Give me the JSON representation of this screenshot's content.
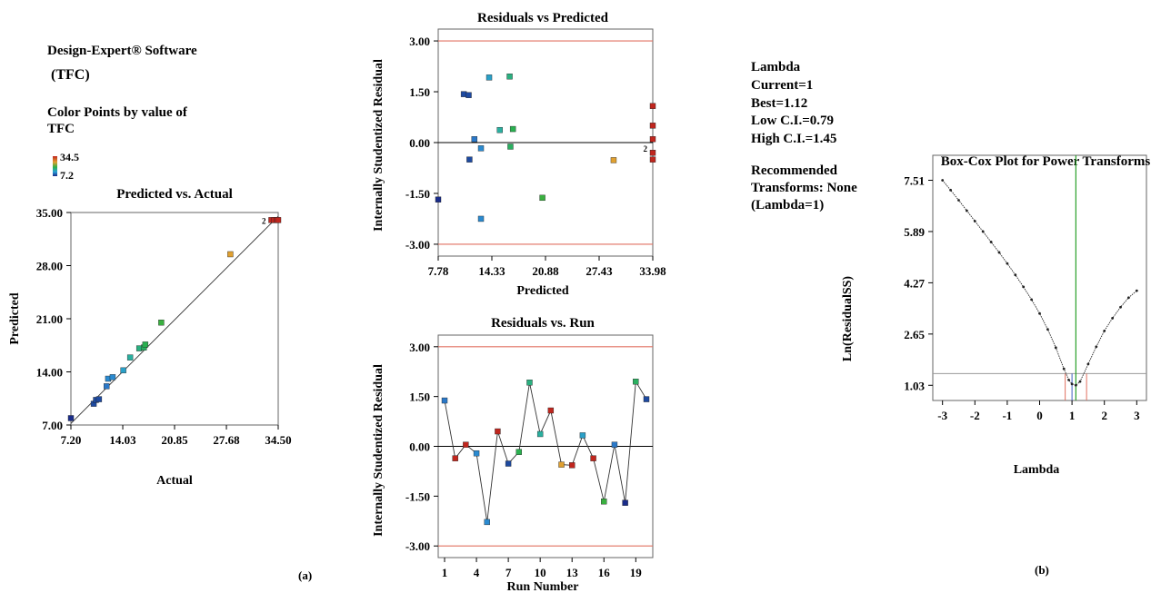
{
  "left_panel": {
    "software": "Design-Expert® Software",
    "response": "(TFC)",
    "color_label_1": "Color Points by value of",
    "color_label_2": "TFC",
    "legend_high": "34.5",
    "legend_low": "7.2",
    "panel_label": "(a)"
  },
  "lambda_info": {
    "title": "Lambda",
    "current": "Current=1",
    "best": "Best=1.12",
    "low_ci": "Low C.I.=0.79",
    "high_ci": "High C.I.=1.45",
    "rec1": "Recommended",
    "rec2": "Transforms: None",
    "rec3": "(Lambda=1)"
  },
  "right_panel": {
    "panel_label": "(b)"
  },
  "colors": {
    "red_line": "#e07060",
    "green_line": "#2aa02a",
    "grid": "#666666"
  },
  "chart_data": [
    {
      "id": "pva",
      "type": "scatter",
      "title": "Predicted vs. Actual",
      "xlabel": "Actual",
      "ylabel": "Predicted",
      "xlim": [
        7.2,
        34.5
      ],
      "ylim": [
        7.0,
        35.0
      ],
      "xticks": [
        "7.20",
        "14.03",
        "20.85",
        "27.68",
        "34.50"
      ],
      "yticks": [
        "7.00",
        "14.00",
        "21.00",
        "28.00",
        "35.00"
      ],
      "xtick_values": [
        7.2,
        14.03,
        20.85,
        27.68,
        34.5
      ],
      "ytick_values": [
        7.0,
        14.0,
        21.0,
        28.0,
        35.0
      ],
      "fit_line": [
        [
          7.2,
          7.2
        ],
        [
          34.5,
          34.5
        ]
      ],
      "points": [
        {
          "x": 7.2,
          "y": 7.9,
          "c": "#1a2c8a"
        },
        {
          "x": 10.2,
          "y": 9.8,
          "c": "#1e4aa0"
        },
        {
          "x": 10.5,
          "y": 10.3,
          "c": "#1e4aa0"
        },
        {
          "x": 10.9,
          "y": 10.4,
          "c": "#1e4aa0"
        },
        {
          "x": 11.9,
          "y": 12.1,
          "c": "#2a78c8"
        },
        {
          "x": 12.1,
          "y": 13.1,
          "c": "#2a8ad0"
        },
        {
          "x": 12.7,
          "y": 13.3,
          "c": "#2a8ad0"
        },
        {
          "x": 14.1,
          "y": 14.2,
          "c": "#2aa0c8"
        },
        {
          "x": 15.0,
          "y": 15.9,
          "c": "#2ab0a0"
        },
        {
          "x": 16.2,
          "y": 17.1,
          "c": "#2ab080"
        },
        {
          "x": 16.8,
          "y": 17.2,
          "c": "#2ab060"
        },
        {
          "x": 17.0,
          "y": 17.6,
          "c": "#2ab050"
        },
        {
          "x": 19.1,
          "y": 20.5,
          "c": "#3ab040"
        },
        {
          "x": 28.2,
          "y": 29.5,
          "c": "#e0a030"
        },
        {
          "x": 33.6,
          "y": 34.0,
          "c": "#c0261e"
        },
        {
          "x": 34.0,
          "y": 34.0,
          "c": "#c0261e"
        },
        {
          "x": 34.3,
          "y": 34.0,
          "c": "#c0261e"
        },
        {
          "x": 34.5,
          "y": 34.0,
          "c": "#c0261e"
        }
      ],
      "annotation": "2"
    },
    {
      "id": "rvp",
      "type": "scatter",
      "title": "Residuals vs Predicted",
      "xlabel": "Predicted",
      "ylabel": "Internally Studentized Residual",
      "xlim": [
        7.78,
        33.98
      ],
      "ylim": [
        -3.35,
        3.35
      ],
      "xticks": [
        "7.78",
        "14.33",
        "20.88",
        "27.43",
        "33.98"
      ],
      "yticks": [
        "3.00",
        "1.50",
        "0.00",
        "-1.50",
        "-3.00"
      ],
      "xtick_values": [
        7.78,
        14.33,
        20.88,
        27.43,
        33.98
      ],
      "ytick_values": [
        3.0,
        1.5,
        0.0,
        -1.5,
        -3.0
      ],
      "limits": [
        3.0,
        -3.0
      ],
      "points": [
        {
          "x": 7.78,
          "y": -1.68,
          "c": "#1a2c8a"
        },
        {
          "x": 10.9,
          "y": 1.43,
          "c": "#1e4aa0"
        },
        {
          "x": 11.5,
          "y": 1.4,
          "c": "#1e4aa0"
        },
        {
          "x": 11.6,
          "y": -0.5,
          "c": "#1e4aa0"
        },
        {
          "x": 12.2,
          "y": 0.1,
          "c": "#2a78c8"
        },
        {
          "x": 13.0,
          "y": -0.17,
          "c": "#2a8ad0"
        },
        {
          "x": 13.0,
          "y": -2.25,
          "c": "#2a8ad0"
        },
        {
          "x": 14.0,
          "y": 1.92,
          "c": "#2aa0c8"
        },
        {
          "x": 15.3,
          "y": 0.37,
          "c": "#2ab0a0"
        },
        {
          "x": 16.5,
          "y": 1.95,
          "c": "#2ab080"
        },
        {
          "x": 16.6,
          "y": -0.12,
          "c": "#2ab060"
        },
        {
          "x": 16.9,
          "y": 0.4,
          "c": "#2ab050"
        },
        {
          "x": 20.5,
          "y": -1.63,
          "c": "#3ab040"
        },
        {
          "x": 29.2,
          "y": -0.52,
          "c": "#e0a030"
        },
        {
          "x": 33.98,
          "y": 1.08,
          "c": "#c0261e"
        },
        {
          "x": 33.98,
          "y": 0.5,
          "c": "#c0261e"
        },
        {
          "x": 33.98,
          "y": 0.1,
          "c": "#c0261e"
        },
        {
          "x": 33.98,
          "y": -0.3,
          "c": "#c0261e"
        },
        {
          "x": 33.98,
          "y": -0.5,
          "c": "#c0261e"
        }
      ],
      "annotation": "2"
    },
    {
      "id": "rvr",
      "type": "line",
      "title": "Residuals vs. Run",
      "xlabel": "Run Number",
      "ylabel": "Internally Studentized Residual",
      "xlim": [
        0.4,
        20.6
      ],
      "ylim": [
        -3.35,
        3.35
      ],
      "xticks": [
        "1",
        "4",
        "7",
        "10",
        "13",
        "16",
        "19"
      ],
      "yticks": [
        "3.00",
        "1.50",
        "0.00",
        "-1.50",
        "-3.00"
      ],
      "xtick_values": [
        1,
        4,
        7,
        10,
        13,
        16,
        19
      ],
      "ytick_values": [
        3.0,
        1.5,
        0.0,
        -1.5,
        -3.0
      ],
      "limits": [
        3.0,
        -3.0
      ],
      "x": [
        1,
        2,
        3,
        4,
        5,
        6,
        7,
        8,
        9,
        10,
        11,
        12,
        13,
        14,
        15,
        16,
        17,
        18,
        19,
        20
      ],
      "values": [
        1.38,
        -0.36,
        0.05,
        -0.21,
        -2.28,
        0.45,
        -0.52,
        -0.17,
        1.92,
        0.37,
        1.08,
        -0.55,
        -0.57,
        0.33,
        -0.36,
        -1.66,
        0.05,
        -1.7,
        1.95,
        1.42
      ],
      "colors": [
        "#2a78c8",
        "#c0261e",
        "#c0261e",
        "#2a8ad0",
        "#2a8ad0",
        "#c0261e",
        "#1e4aa0",
        "#2ab050",
        "#2ab080",
        "#2ab0a0",
        "#c0261e",
        "#e0a030",
        "#c0261e",
        "#2aa0c8",
        "#c0261e",
        "#3ab040",
        "#2a78c8",
        "#1a2c8a",
        "#2ab060",
        "#1e4aa0"
      ]
    },
    {
      "id": "boxcox",
      "type": "line",
      "title": "Box-Cox Plot for Power Transforms",
      "xlabel": "Lambda",
      "ylabel": "Ln(ResidualSS)",
      "xlim": [
        -3.3,
        3.3
      ],
      "ylim": [
        0.55,
        8.3
      ],
      "xticks": [
        "-3",
        "-2",
        "-1",
        "0",
        "1",
        "2",
        "3"
      ],
      "yticks": [
        "7.51",
        "5.89",
        "4.27",
        "2.65",
        "1.03"
      ],
      "xtick_values": [
        -3,
        -2,
        -1,
        0,
        1,
        2,
        3
      ],
      "ytick_values": [
        7.51,
        5.89,
        4.27,
        2.65,
        1.03
      ],
      "x": [
        -3.0,
        -2.75,
        -2.5,
        -2.25,
        -2.0,
        -1.75,
        -1.5,
        -1.25,
        -1.0,
        -0.75,
        -0.5,
        -0.25,
        0.0,
        0.25,
        0.5,
        0.75,
        0.9,
        1.0,
        1.12,
        1.25,
        1.5,
        1.75,
        2.0,
        2.25,
        2.5,
        2.75,
        3.0
      ],
      "values": [
        7.51,
        7.2,
        6.88,
        6.55,
        6.22,
        5.89,
        5.56,
        5.23,
        4.88,
        4.52,
        4.14,
        3.74,
        3.3,
        2.8,
        2.22,
        1.55,
        1.2,
        1.07,
        1.03,
        1.15,
        1.7,
        2.25,
        2.75,
        3.15,
        3.5,
        3.8,
        4.02
      ],
      "best_lambda": 1.12,
      "ci": [
        0.79,
        1.45
      ],
      "ci_level": 1.4
    }
  ]
}
